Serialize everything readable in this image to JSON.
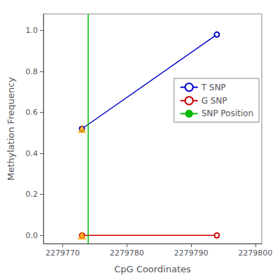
{
  "chart_data": {
    "type": "line",
    "xlabel": "CpG Coordinates",
    "ylabel": "Methylation Frequency",
    "series": [
      {
        "name": "T SNP",
        "type": "line",
        "color": "#0000cc",
        "marker": "circle",
        "x": [
          2279773,
          2279794
        ],
        "values": [
          0.52,
          0.98
        ]
      },
      {
        "name": "G SNP",
        "type": "line",
        "color": "#cc0000",
        "marker": "circle",
        "x": [
          2279773,
          2279794
        ],
        "values": [
          0.0,
          0.0
        ]
      },
      {
        "name": "SNP Position",
        "type": "vline",
        "color": "#00bb00",
        "x": [
          2279774
        ]
      },
      {
        "type": "scatter",
        "color": "#FFA500",
        "marker": "triangle",
        "x": [
          2279773
        ],
        "values": [
          0.52
        ]
      },
      {
        "type": "scatter",
        "color": "#FFA500",
        "marker": "triangle",
        "x": [
          2279773
        ],
        "values": [
          0.0
        ]
      }
    ],
    "xlim": [
      2279767,
      2279801
    ],
    "xticks": [
      2279770,
      2279780,
      2279790,
      2279800
    ],
    "ylim": [
      -0.04,
      1.08
    ],
    "yticks": [
      {
        "value": 0.0,
        "label": "0.0"
      },
      0.2,
      0.4,
      0.6,
      0.8,
      {
        "value": 1.0,
        "label": "1.0"
      }
    ],
    "grid": false,
    "legend": "upper right"
  }
}
